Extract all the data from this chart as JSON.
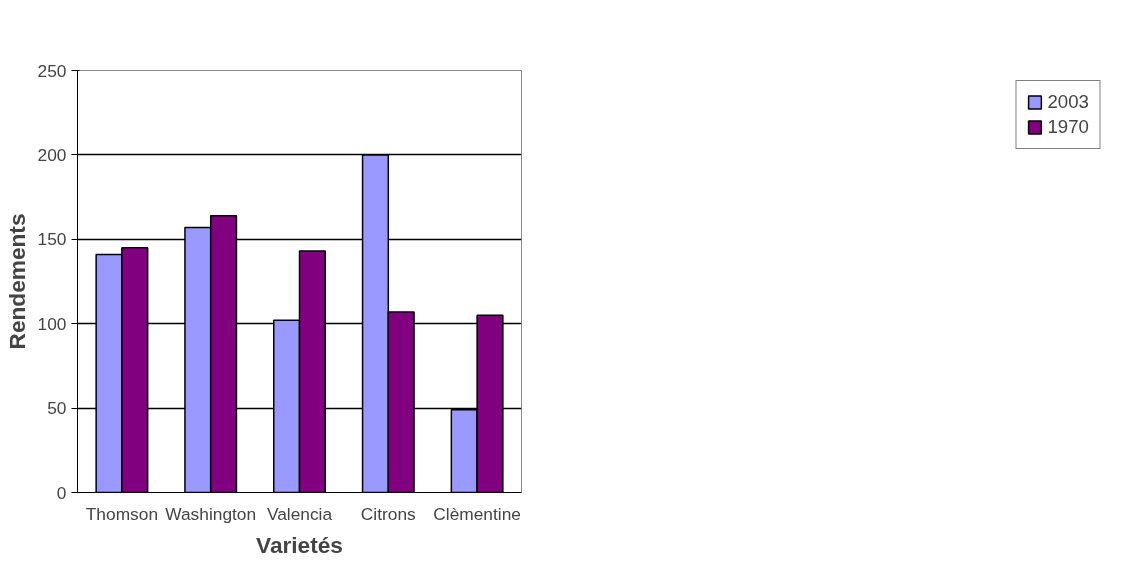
{
  "chart_data": {
    "type": "bar",
    "xlabel": "Varietés",
    "ylabel": "Rendements",
    "categories": [
      "Thomson",
      "Washington",
      "Valencia",
      "Citrons",
      "Clèmentine"
    ],
    "series": [
      {
        "name": "2003",
        "color": "#9999ff",
        "values": [
          141,
          157,
          102,
          200,
          49
        ]
      },
      {
        "name": "1970",
        "color": "#800080",
        "values": [
          145,
          164,
          143,
          107,
          105
        ]
      }
    ],
    "ylim": [
      0,
      250
    ],
    "yticks": [
      0,
      50,
      100,
      150,
      200,
      250
    ],
    "grid": "y",
    "legend": "right"
  }
}
